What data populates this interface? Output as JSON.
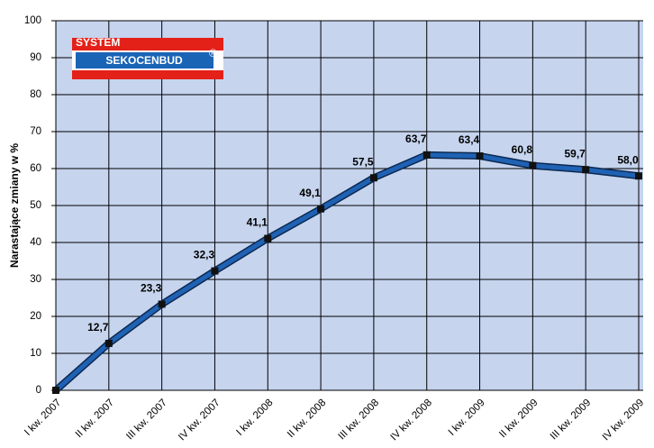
{
  "chart_data": {
    "type": "line",
    "y_label": "Narastające zmiany w %",
    "logo": {
      "top": "SYSTEM",
      "name": "SEKOCENBUD",
      "mark": "®"
    },
    "categories": [
      "I kw. 2007",
      "II kw. 2007",
      "III kw. 2007",
      "IV kw. 2007",
      "I kw. 2008",
      "II kw. 2008",
      "III kw. 2008",
      "IV kw. 2008",
      "I kw. 2009",
      "II kw. 2009",
      "III kw. 2009",
      "IV kw. 2009"
    ],
    "values": [
      0,
      12.7,
      23.3,
      32.3,
      41.1,
      49.1,
      57.5,
      63.7,
      63.4,
      60.8,
      59.7,
      58.0
    ],
    "value_labels": [
      null,
      "12,7",
      "23,3",
      "32,3",
      "41,1",
      "49,1",
      "57,5",
      "63,7",
      "63,4",
      "60,8",
      "59,7",
      "58,0"
    ],
    "color": "#1f62b4",
    "ylim": [
      0,
      100
    ],
    "yticks": [
      0,
      10,
      20,
      30,
      40,
      50,
      60,
      70,
      80,
      90,
      100
    ],
    "grid": true
  }
}
